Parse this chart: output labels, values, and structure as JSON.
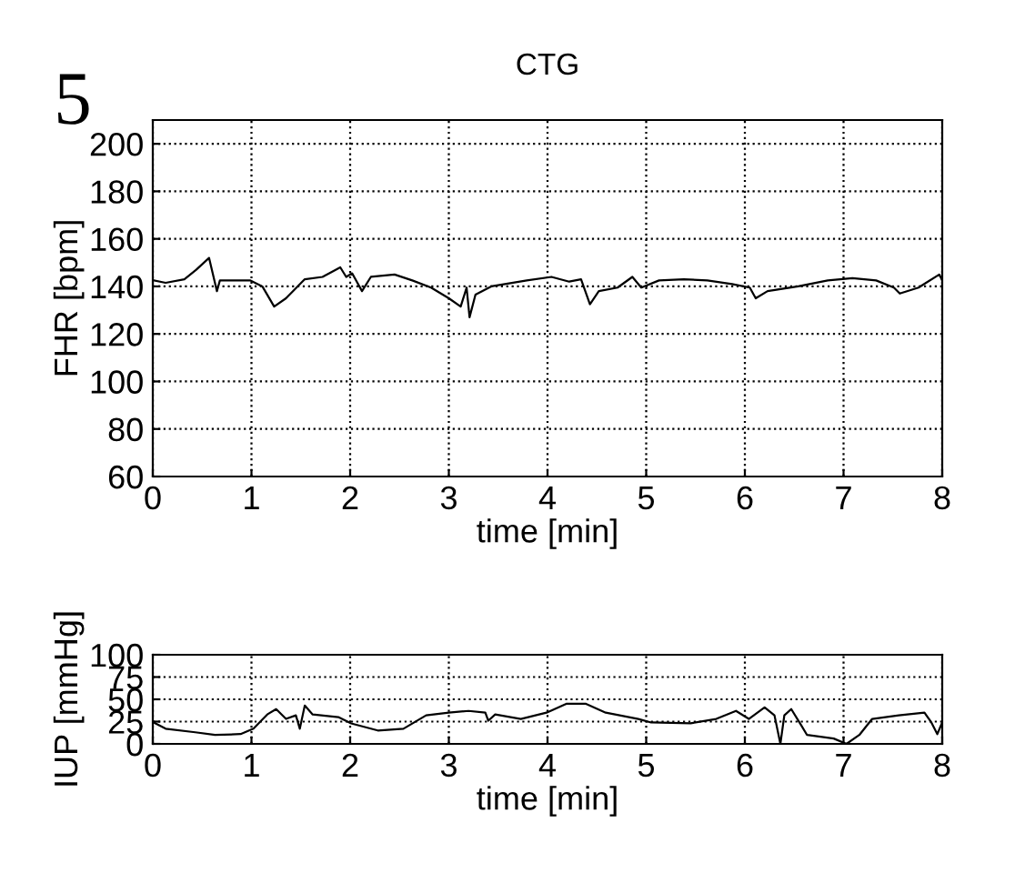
{
  "chart_data": [
    {
      "type": "line",
      "title": "CTG",
      "annotations": [
        "5"
      ],
      "xlabel": "time [min]",
      "ylabel": "FHR [bpm]",
      "xlim": [
        0,
        8
      ],
      "xticks": [
        0,
        1,
        2,
        3,
        4,
        5,
        6,
        7,
        8
      ],
      "ylim": [
        60,
        210
      ],
      "yticks": [
        60,
        80,
        100,
        120,
        140,
        160,
        180,
        200
      ],
      "grid": true,
      "series": [
        {
          "color": "#000000",
          "x": [
            0.01,
            0.13,
            0.32,
            0.44,
            0.57,
            0.65,
            0.68,
            0.99,
            1.11,
            1.23,
            1.35,
            1.54,
            1.72,
            1.9,
            1.96,
            2.02,
            2.12,
            2.21,
            2.45,
            2.63,
            2.82,
            3.0,
            3.12,
            3.18,
            3.21,
            3.27,
            3.43,
            3.79,
            4.04,
            4.22,
            4.34,
            4.43,
            4.52,
            4.71,
            4.86,
            4.95,
            5.13,
            5.38,
            5.62,
            5.87,
            6.05,
            6.11,
            6.23,
            6.54,
            6.84,
            7.09,
            7.33,
            7.51,
            7.57,
            7.76,
            7.97,
            8.0
          ],
          "values": [
            142.5,
            141.5,
            143,
            147,
            152,
            138,
            142.5,
            142.5,
            140,
            131.5,
            135,
            143,
            144,
            148,
            144,
            145.5,
            138,
            144,
            145,
            142.5,
            139.5,
            135,
            131.5,
            139.5,
            127,
            136.5,
            140,
            142.5,
            144,
            142,
            143,
            132.5,
            138,
            139.5,
            144,
            139.5,
            142.5,
            143,
            142.5,
            141,
            139.5,
            135,
            138,
            140,
            142.5,
            143.5,
            142.5,
            139.5,
            137,
            139.5,
            145,
            142.5
          ]
        }
      ]
    },
    {
      "type": "line",
      "xlabel": "time [min]",
      "ylabel": "IUP [mmHg]",
      "xlim": [
        0,
        8
      ],
      "xticks": [
        0,
        1,
        2,
        3,
        4,
        5,
        6,
        7,
        8
      ],
      "ylim": [
        0,
        100
      ],
      "yticks": [
        0,
        25,
        50,
        75,
        100
      ],
      "grid": true,
      "series": [
        {
          "color": "#000000",
          "x": [
            0.01,
            0.13,
            0.43,
            0.63,
            0.89,
            1.02,
            1.16,
            1.25,
            1.35,
            1.45,
            1.49,
            1.54,
            1.62,
            1.88,
            2.01,
            2.28,
            2.54,
            2.77,
            3.0,
            3.2,
            3.37,
            3.4,
            3.47,
            3.73,
            3.99,
            4.19,
            4.39,
            4.59,
            4.92,
            5.05,
            5.45,
            5.71,
            5.91,
            6.04,
            6.2,
            6.3,
            6.36,
            6.4,
            6.47,
            6.57,
            6.63,
            6.9,
            7.03,
            7.16,
            7.29,
            7.56,
            7.82,
            7.89,
            7.95,
            8.0
          ],
          "values": [
            24,
            17,
            13,
            10,
            11,
            17,
            33,
            39,
            28,
            32,
            17,
            43,
            33,
            30,
            23,
            15,
            17,
            32,
            35,
            37,
            35,
            26,
            33,
            28,
            35,
            45,
            45,
            35,
            28,
            24,
            23,
            28,
            37,
            28,
            41,
            32,
            0,
            32,
            39,
            21,
            10,
            6,
            0,
            10,
            28,
            32,
            35,
            24,
            11,
            24
          ]
        }
      ]
    }
  ]
}
